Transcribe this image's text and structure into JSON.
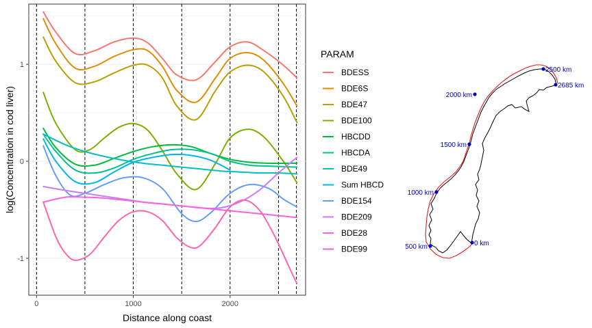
{
  "chart_data": {
    "type": "line",
    "xlabel": "Distance along coast",
    "ylabel": "log(Concentration in cod liver)",
    "xlim": [
      -80,
      2780
    ],
    "ylim": [
      -1.38,
      1.62
    ],
    "xticks": [
      0,
      1000,
      2000
    ],
    "yticks": [
      -1,
      0,
      1
    ],
    "grid": true,
    "vlines": [
      0,
      500,
      1000,
      1500,
      2000,
      2500,
      2685
    ],
    "legend": {
      "title": "PARAM",
      "placement": "right"
    },
    "series": [
      {
        "name": "BDESS",
        "color": "#F8766D",
        "x": [
          70,
          200,
          400,
          600,
          800,
          1000,
          1150,
          1300,
          1450,
          1650,
          1850,
          2000,
          2180,
          2350,
          2550,
          2690
        ],
        "y": [
          1.54,
          1.33,
          1.11,
          1.14,
          1.23,
          1.27,
          1.22,
          1.06,
          0.89,
          0.84,
          1.03,
          1.18,
          1.23,
          1.14,
          0.99,
          0.86
        ]
      },
      {
        "name": "BDE6S",
        "color": "#DE8C00",
        "x": [
          70,
          200,
          400,
          600,
          800,
          1000,
          1150,
          1300,
          1450,
          1650,
          1850,
          2000,
          2180,
          2350,
          2550,
          2690
        ],
        "y": [
          1.47,
          1.21,
          0.96,
          0.98,
          1.08,
          1.15,
          1.14,
          0.98,
          0.73,
          0.61,
          0.86,
          1.06,
          1.12,
          1.04,
          0.8,
          0.57
        ]
      },
      {
        "name": "BDE47",
        "color": "#B79F00",
        "x": [
          70,
          200,
          400,
          600,
          800,
          1000,
          1150,
          1300,
          1450,
          1650,
          1850,
          2000,
          2180,
          2350,
          2550,
          2690
        ],
        "y": [
          1.28,
          1.03,
          0.81,
          0.82,
          0.91,
          0.99,
          0.99,
          0.86,
          0.57,
          0.43,
          0.73,
          0.92,
          0.99,
          0.92,
          0.67,
          0.4
        ]
      },
      {
        "name": "BDE100",
        "color": "#7CAE00",
        "x": [
          70,
          200,
          400,
          550,
          700,
          850,
          1000,
          1150,
          1300,
          1450,
          1650,
          1850,
          2000,
          2180,
          2350,
          2550,
          2690
        ],
        "y": [
          0.71,
          0.39,
          0.12,
          0.12,
          0.24,
          0.35,
          0.39,
          0.32,
          0.11,
          -0.13,
          -0.29,
          -0.02,
          0.24,
          0.33,
          0.25,
          0.0,
          -0.22
        ]
      },
      {
        "name": "HBCDD",
        "color": "#00BA38",
        "x": [
          70,
          200,
          400,
          600,
          800,
          1000,
          1200,
          1400,
          1600,
          1800,
          2000,
          2200,
          2400,
          2690
        ],
        "y": [
          0.34,
          0.14,
          -0.03,
          -0.04,
          0.03,
          0.1,
          0.15,
          0.17,
          0.15,
          0.08,
          0.02,
          -0.01,
          -0.02,
          -0.02
        ]
      },
      {
        "name": "HBCDA",
        "color": "#00C08B",
        "x": [
          70,
          200,
          400,
          600,
          800,
          1000,
          1200,
          1400,
          1600,
          1800,
          2000,
          2200,
          2400,
          2690
        ],
        "y": [
          0.28,
          0.1,
          -0.09,
          -0.12,
          -0.07,
          0.02,
          0.08,
          0.12,
          0.12,
          0.08,
          0.0,
          -0.04,
          -0.05,
          -0.06
        ]
      },
      {
        "name": "BDE49",
        "color": "#00BFC4",
        "x": [
          70,
          300,
          500,
          700,
          900,
          1100,
          1300,
          1500,
          1700,
          1900,
          2100,
          2300,
          2500,
          2690
        ],
        "y": [
          0.28,
          0.17,
          0.1,
          0.05,
          0.01,
          -0.02,
          -0.04,
          -0.06,
          -0.08,
          -0.1,
          -0.11,
          -0.12,
          -0.12,
          -0.13
        ]
      },
      {
        "name": "Sum HBCD",
        "color": "#00B4F0",
        "x": [
          70,
          200,
          400,
          600,
          800,
          1000,
          1200,
          1400,
          1600,
          1800,
          2000
        ],
        "y": [
          0.23,
          0.0,
          -0.21,
          -0.22,
          -0.11,
          -0.01,
          0.04,
          0.07,
          0.06,
          0.01,
          -0.09
        ]
      },
      {
        "name": "BDE154",
        "color": "#619CFF",
        "x": [
          70,
          200,
          350,
          500,
          700,
          900,
          1100,
          1300,
          1500,
          1650,
          1800,
          2000,
          2200,
          2400,
          2550,
          2690
        ],
        "y": [
          0.16,
          -0.15,
          -0.35,
          -0.33,
          -0.24,
          -0.17,
          -0.17,
          -0.28,
          -0.54,
          -0.62,
          -0.53,
          -0.33,
          -0.24,
          -0.28,
          -0.39,
          -0.47
        ]
      },
      {
        "name": "BDE209",
        "color": "#C77CFF",
        "x": [
          70,
          300,
          500,
          700,
          900,
          1100,
          1300,
          1500,
          1700,
          1900,
          2100,
          2300,
          2500,
          2690
        ],
        "y": [
          -0.26,
          -0.3,
          -0.33,
          -0.36,
          -0.39,
          -0.42,
          -0.44,
          -0.46,
          -0.48,
          -0.48,
          -0.42,
          -0.3,
          -0.12,
          0.04
        ]
      },
      {
        "name": "BDE28",
        "color": "#F564E3",
        "x": [
          70,
          300,
          500,
          700,
          900,
          1100,
          1300,
          1500,
          1700,
          1900,
          2100,
          2300,
          2500,
          2690
        ],
        "y": [
          -0.42,
          -0.37,
          -0.37,
          -0.38,
          -0.4,
          -0.42,
          -0.44,
          -0.46,
          -0.48,
          -0.5,
          -0.52,
          -0.54,
          -0.56,
          -0.58
        ]
      },
      {
        "name": "BDE99",
        "color": "#FF64B0",
        "x": [
          70,
          200,
          300,
          400,
          550,
          700,
          850,
          1000,
          1150,
          1300,
          1450,
          1600,
          1700,
          1850,
          2000,
          2150,
          2300,
          2450,
          2600,
          2690
        ],
        "y": [
          -0.42,
          -0.78,
          -0.95,
          -1.02,
          -0.96,
          -0.78,
          -0.61,
          -0.52,
          -0.52,
          -0.61,
          -0.79,
          -0.89,
          -0.86,
          -0.68,
          -0.47,
          -0.4,
          -0.5,
          -0.75,
          -1.07,
          -1.26
        ]
      }
    ]
  },
  "map": {
    "label_color": "#0000cc",
    "coast_color": "#000000",
    "route_color": "#e31a1c",
    "markers": [
      {
        "label": "0 km",
        "anchor": "right"
      },
      {
        "label": "500 km",
        "anchor": "left"
      },
      {
        "label": "1000 km",
        "anchor": "left"
      },
      {
        "label": "1500 km",
        "anchor": "left"
      },
      {
        "label": "2000 km",
        "anchor": "left"
      },
      {
        "label": "2500 km",
        "anchor": "right"
      },
      {
        "label": "2685 km",
        "anchor": "right"
      }
    ]
  }
}
